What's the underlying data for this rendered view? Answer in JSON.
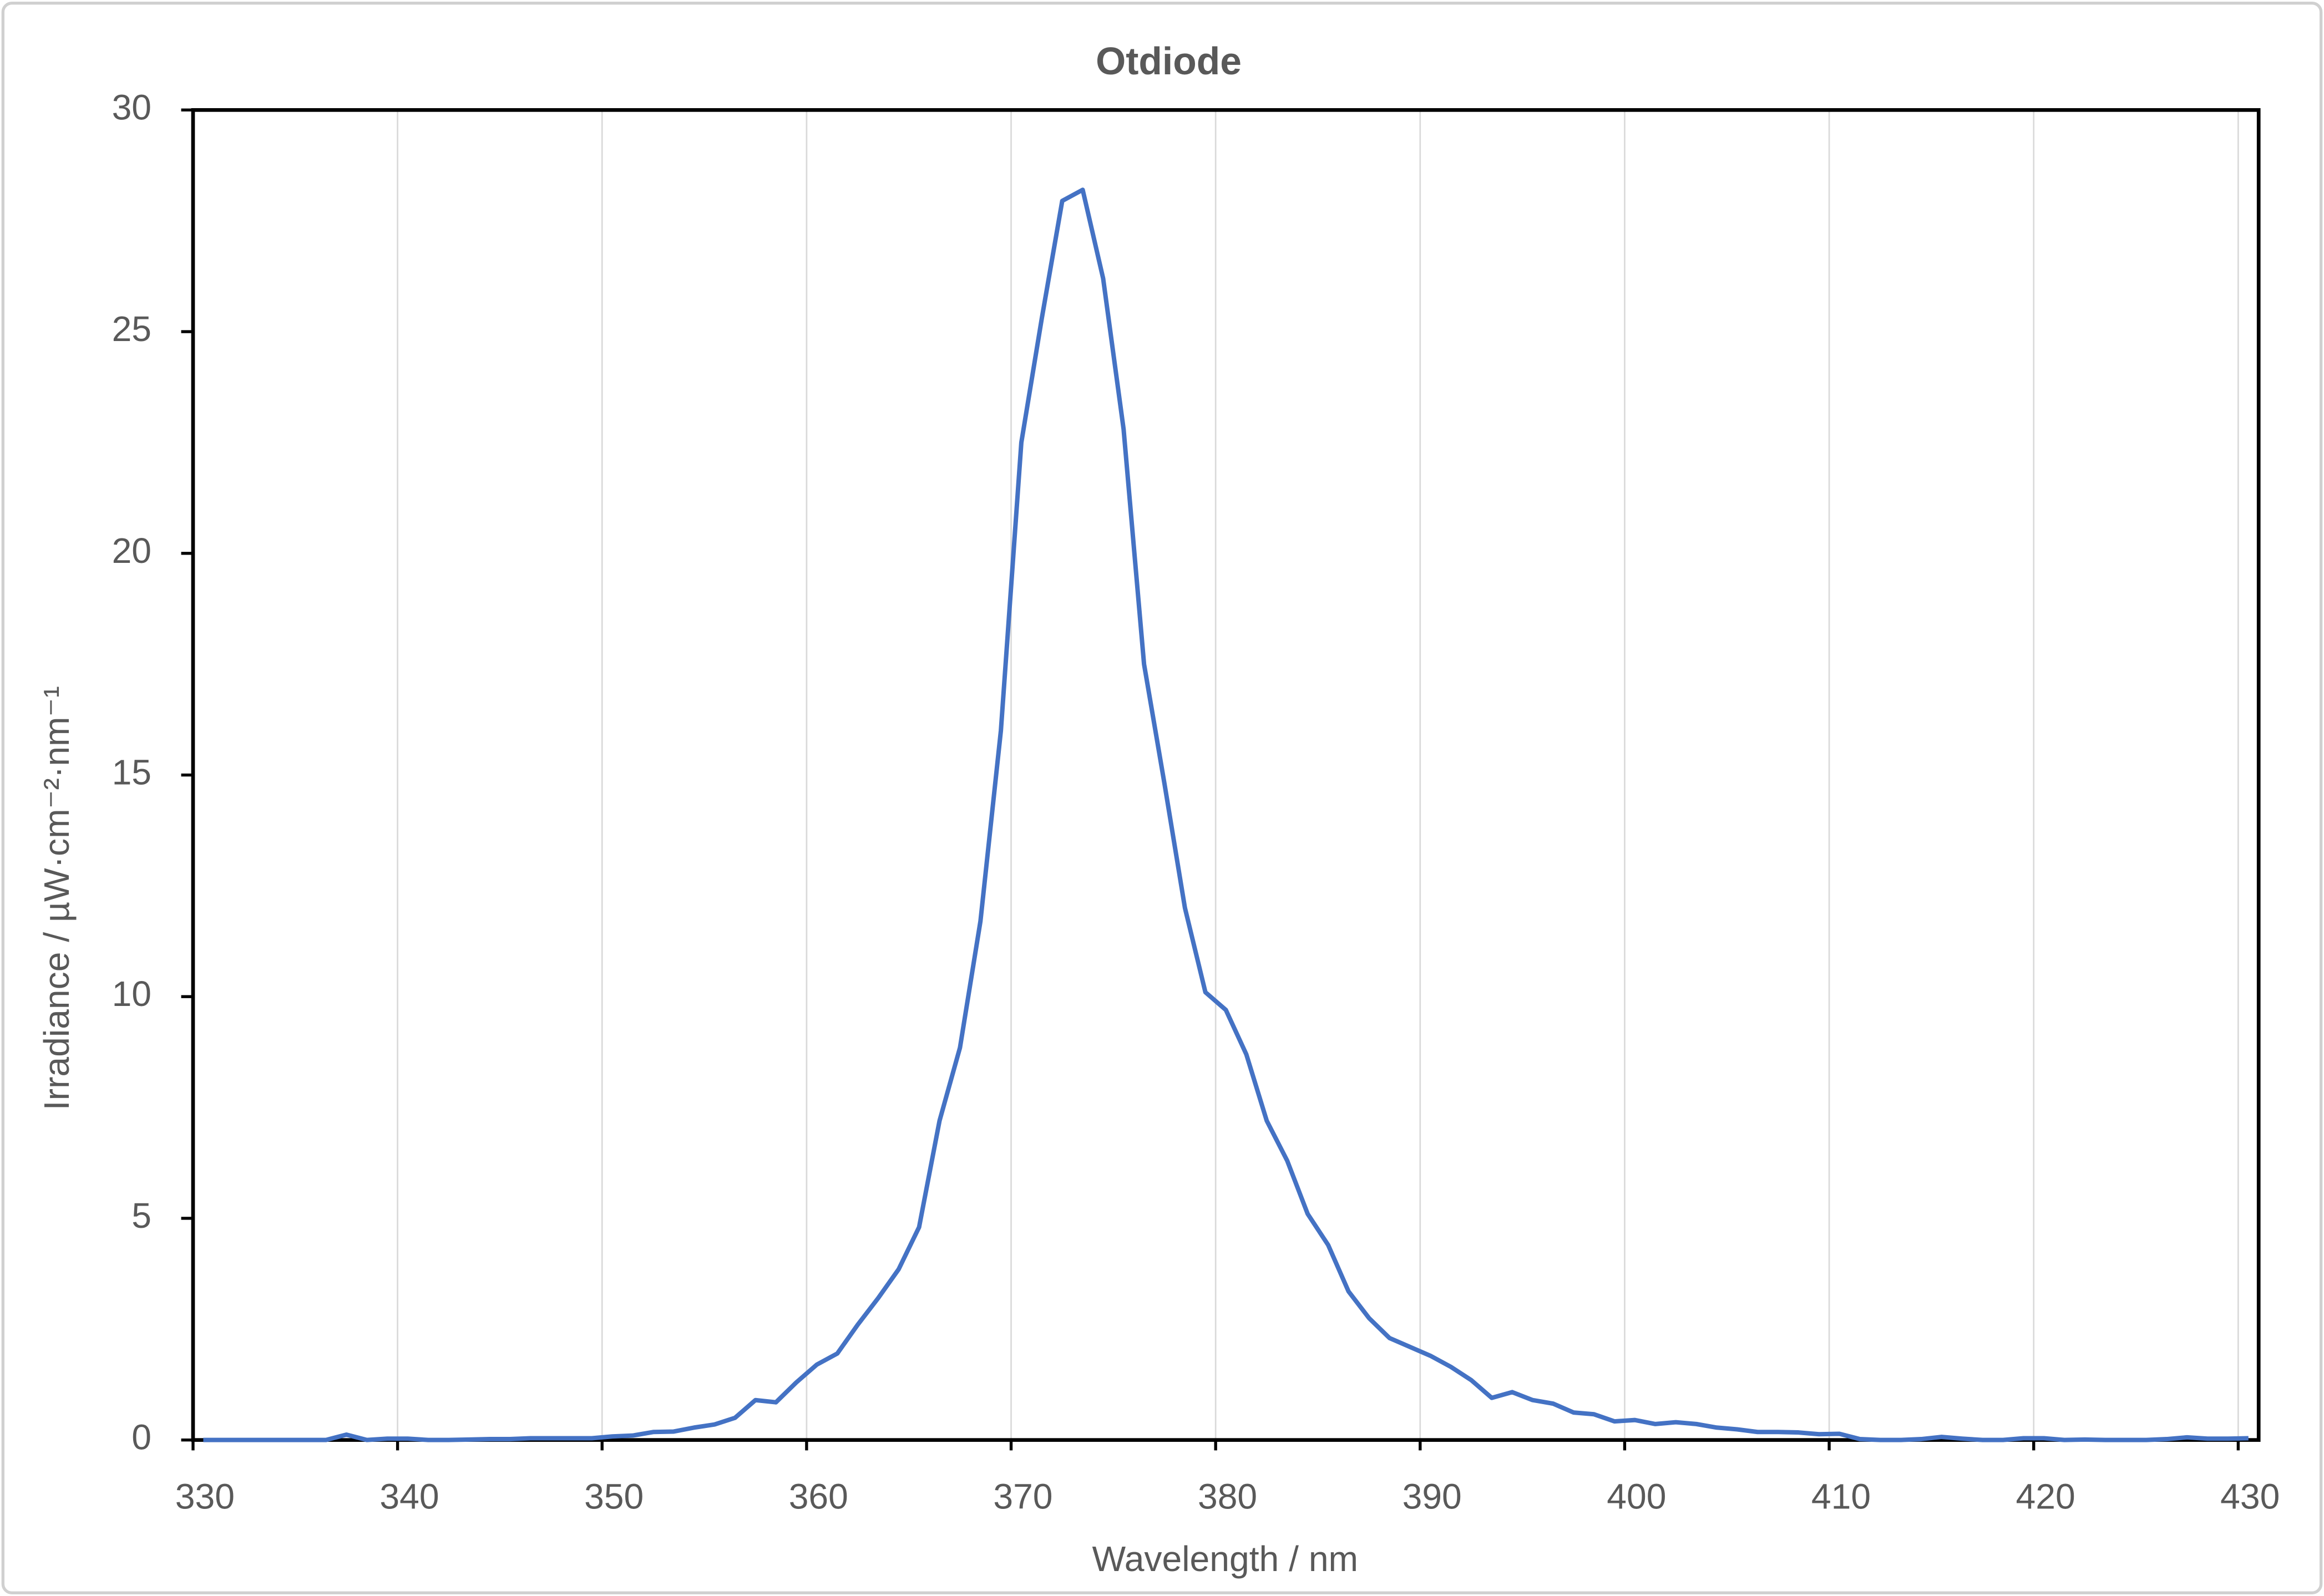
{
  "chart_data": {
    "type": "line",
    "title": "Otdiode",
    "x_label": "Wavelength / nm",
    "y_label": "Irradiance / µW·cm⁻²·nm⁻¹",
    "x": [
      330.5,
      331.5,
      332.5,
      333.5,
      334.5,
      335.5,
      336.5,
      337.5,
      338.5,
      339.5,
      340.5,
      341.5,
      342.5,
      343.5,
      344.5,
      345.5,
      346.5,
      347.5,
      348.5,
      349.5,
      350.5,
      351.5,
      352.5,
      353.5,
      354.5,
      355.5,
      356.5,
      357.5,
      358.5,
      359.5,
      360.5,
      361.5,
      362.5,
      363.5,
      364.5,
      365.5,
      366.5,
      367.5,
      368.5,
      369.5,
      370.5,
      371.5,
      372.5,
      373.5,
      374.5,
      375.5,
      376.5,
      377.5,
      378.5,
      379.5,
      380.5,
      381.5,
      382.5,
      383.5,
      384.5,
      385.5,
      386.5,
      387.5,
      388.5,
      389.5,
      390.5,
      391.5,
      392.5,
      393.5,
      394.5,
      395.5,
      396.5,
      397.5,
      398.5,
      399.5,
      400.5,
      401.5,
      402.5,
      403.5,
      404.5,
      405.5,
      406.5,
      407.5,
      408.5,
      409.5,
      410.5,
      411.5,
      412.5,
      413.5,
      414.5,
      415.5,
      416.5,
      417.5,
      418.5,
      419.5,
      420.5,
      421.5,
      422.5,
      423.5,
      424.5,
      425.5,
      426.5,
      427.5,
      428.5,
      429.5,
      430.5
    ],
    "values": [
      0,
      0,
      0,
      0,
      0,
      0,
      0,
      0.12,
      0,
      0.03,
      0.03,
      0,
      0,
      0.01,
      0.02,
      0.02,
      0.04,
      0.04,
      0.04,
      0.04,
      0.08,
      0.1,
      0.18,
      0.19,
      0.28,
      0.35,
      0.5,
      0.9,
      0.85,
      1.3,
      1.7,
      1.95,
      2.6,
      3.2,
      3.85,
      4.8,
      7.2,
      8.85,
      11.7,
      16,
      22.5,
      25.3,
      27.95,
      28.2,
      26.2,
      22.8,
      17.5,
      14.8,
      12,
      10.1,
      9.7,
      8.7,
      7.2,
      6.3,
      5.1,
      4.4,
      3.35,
      2.75,
      2.3,
      2.1,
      1.9,
      1.65,
      1.35,
      0.95,
      1.08,
      0.9,
      0.82,
      0.62,
      0.58,
      0.42,
      0.45,
      0.36,
      0.4,
      0.36,
      0.28,
      0.24,
      0.18,
      0.18,
      0.17,
      0.13,
      0.14,
      0.02,
      0,
      0,
      0.02,
      0.07,
      0.03,
      0,
      0,
      0.04,
      0.04,
      0,
      0.01,
      0,
      0,
      0,
      0.02,
      0.06,
      0.03,
      0.03,
      0.04
    ],
    "color": "#4472c4",
    "xlim": [
      330,
      431
    ],
    "xticks": [
      330,
      340,
      350,
      360,
      370,
      380,
      390,
      400,
      410,
      420,
      430
    ],
    "ylim": [
      0,
      30
    ],
    "yticks": [
      0,
      5,
      10,
      15,
      20,
      25,
      30
    ],
    "grid": "x"
  }
}
